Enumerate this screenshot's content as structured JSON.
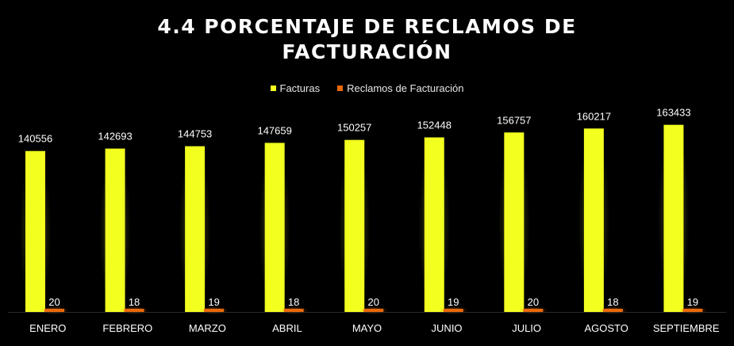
{
  "chart_data": {
    "type": "bar",
    "title_lines": [
      "4.4 PORCENTAJE DE RECLAMOS DE",
      "FACTURACIÓN"
    ],
    "categories": [
      "ENERO",
      "FEBRERO",
      "MARZO",
      "ABRIL",
      "MAYO",
      "JUNIO",
      "JULIO",
      "AGOSTO",
      "SEPTIEMBRE"
    ],
    "series": [
      {
        "name": "Facturas",
        "color": "#f2ff1f",
        "values": [
          140556,
          142693,
          144753,
          147659,
          150257,
          152448,
          156757,
          160217,
          163433
        ]
      },
      {
        "name": "Reclamos de Facturación",
        "color": "#e8690b",
        "values": [
          20,
          18,
          19,
          18,
          20,
          19,
          20,
          18,
          19
        ]
      }
    ],
    "ylim": [
      0,
      195000
    ],
    "grid": false,
    "legend_position": "top-center",
    "data_labels": true,
    "background": "#000000"
  }
}
